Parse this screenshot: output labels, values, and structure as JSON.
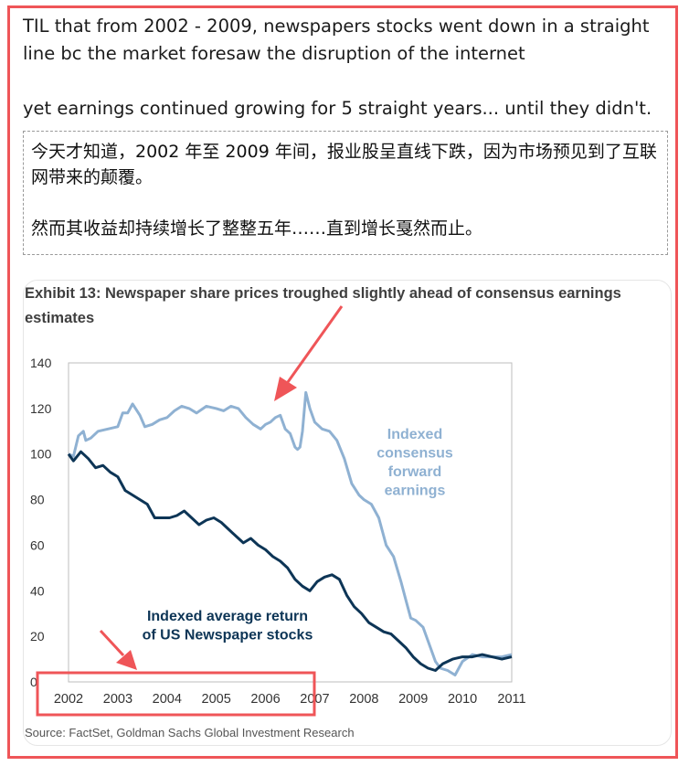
{
  "post": {
    "line1": "TIL that from 2002 - 2009, newspapers stocks went down in a straight line bc the market foresaw the disruption of the internet",
    "line2": "yet earnings continued growing for 5 straight years... until they didn't."
  },
  "translation": {
    "line1": "今天才知道，2002 年至 2009 年间，报业股呈直线下跌，因为市场预见到了互联网带来的颠覆。",
    "line2": "然而其收益却持续增长了整整五年……直到增长戛然而止。"
  },
  "colors": {
    "frame": "#ef5558",
    "earnings": "#8fb1d2",
    "returns": "#0d3556",
    "annotation": "#ef5558"
  },
  "chart_data": {
    "type": "line",
    "title": "Exhibit 13: Newspaper share prices troughed slightly ahead of consensus earnings estimates",
    "source": "Source: FactSet, Goldman Sachs Global Investment Research",
    "xlabel": "",
    "ylabel": "",
    "xlim": [
      2002,
      2011
    ],
    "ylim": [
      0,
      140
    ],
    "yticks": [
      0,
      20,
      40,
      60,
      80,
      100,
      120,
      140
    ],
    "xticks": [
      "2002",
      "2003",
      "2004",
      "2005",
      "2006",
      "2007",
      "2008",
      "2009",
      "2010",
      "2011"
    ],
    "grid": false,
    "series": [
      {
        "name": "Indexed consensus forward earnings",
        "label_lines": [
          "Indexed",
          "consensus",
          "forward",
          "earnings"
        ],
        "x": [
          2002.0,
          2002.1,
          2002.2,
          2002.3,
          2002.35,
          2002.45,
          2002.6,
          2002.8,
          2003.0,
          2003.1,
          2003.2,
          2003.3,
          2003.45,
          2003.55,
          2003.7,
          2003.85,
          2004.0,
          2004.15,
          2004.3,
          2004.45,
          2004.6,
          2004.8,
          2005.0,
          2005.15,
          2005.3,
          2005.45,
          2005.6,
          2005.75,
          2005.9,
          2006.0,
          2006.1,
          2006.2,
          2006.3,
          2006.4,
          2006.5,
          2006.6,
          2006.65,
          2006.7,
          2006.75,
          2006.82,
          2006.9,
          2007.0,
          2007.15,
          2007.3,
          2007.45,
          2007.6,
          2007.75,
          2007.9,
          2008.0,
          2008.15,
          2008.3,
          2008.45,
          2008.6,
          2008.75,
          2008.85,
          2008.95,
          2009.05,
          2009.2,
          2009.35,
          2009.45,
          2009.55,
          2009.7,
          2009.85,
          2010.0,
          2010.2,
          2010.4,
          2010.6,
          2010.8,
          2011.0
        ],
        "values": [
          100,
          99,
          108,
          110,
          106,
          107,
          110,
          111,
          112,
          118,
          118,
          122,
          117,
          112,
          113,
          115,
          116,
          119,
          121,
          120,
          118,
          121,
          120,
          119,
          121,
          120,
          116,
          113,
          111,
          113,
          114,
          116,
          117,
          111,
          109,
          103,
          102,
          103,
          110,
          127,
          120,
          114,
          111,
          110,
          106,
          98,
          87,
          82,
          80,
          78,
          72,
          60,
          55,
          44,
          36,
          28,
          27,
          24,
          15,
          9,
          6,
          5,
          3,
          9,
          12,
          11,
          11,
          11,
          12
        ]
      },
      {
        "name": "Indexed average return of US Newspaper stocks",
        "label_lines": [
          "Indexed average return",
          "of US Newspaper stocks"
        ],
        "x": [
          2002.0,
          2002.1,
          2002.25,
          2002.4,
          2002.55,
          2002.7,
          2002.85,
          2003.0,
          2003.15,
          2003.3,
          2003.45,
          2003.6,
          2003.75,
          2003.9,
          2004.05,
          2004.2,
          2004.35,
          2004.5,
          2004.65,
          2004.8,
          2004.95,
          2005.1,
          2005.25,
          2005.4,
          2005.55,
          2005.7,
          2005.85,
          2006.0,
          2006.15,
          2006.3,
          2006.45,
          2006.6,
          2006.75,
          2006.9,
          2007.05,
          2007.2,
          2007.35,
          2007.5,
          2007.65,
          2007.8,
          2007.95,
          2008.1,
          2008.25,
          2008.4,
          2008.55,
          2008.7,
          2008.85,
          2009.0,
          2009.15,
          2009.3,
          2009.45,
          2009.6,
          2009.8,
          2010.0,
          2010.2,
          2010.4,
          2010.6,
          2010.8,
          2011.0
        ],
        "values": [
          100,
          97,
          101,
          98,
          94,
          95,
          92,
          90,
          84,
          82,
          80,
          78,
          72,
          72,
          72,
          73,
          75,
          72,
          69,
          71,
          72,
          70,
          67,
          64,
          61,
          63,
          60,
          58,
          55,
          53,
          50,
          45,
          42,
          40,
          44,
          46,
          47,
          45,
          38,
          33,
          30,
          26,
          24,
          22,
          21,
          18,
          15,
          11,
          8,
          6,
          5,
          8,
          10,
          11,
          11,
          12,
          11,
          10,
          11
        ]
      }
    ]
  }
}
